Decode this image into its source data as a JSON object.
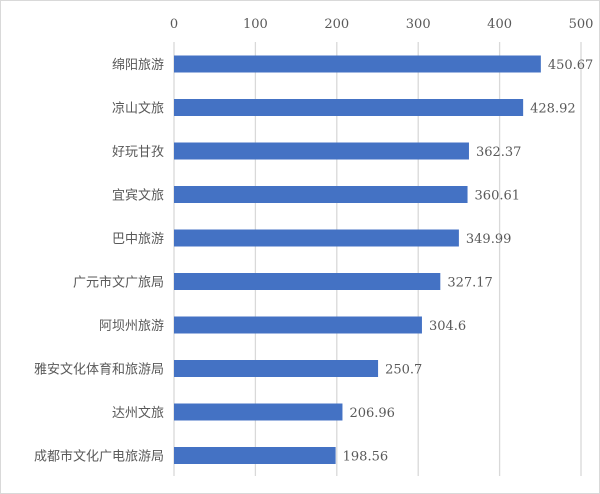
{
  "chart_data": {
    "type": "bar",
    "orientation": "horizontal",
    "title": "",
    "xlabel": "",
    "ylabel": "",
    "xlim": [
      0,
      500
    ],
    "xticks": [
      0,
      100,
      200,
      300,
      400,
      500
    ],
    "tick_labels": [
      "0",
      "100",
      "200",
      "300",
      "400",
      "500"
    ],
    "axis_position": "top",
    "grid": true,
    "categories": [
      "绵阳旅游",
      "凉山文旅",
      "好玩甘孜",
      "宜宾文旅",
      "巴中旅游",
      "广元市文广旅局",
      "阿坝州旅游",
      "雅安文化体育和旅游局",
      "达州文旅",
      "成都市文化广电旅游局"
    ],
    "values": [
      450.67,
      428.92,
      362.37,
      360.61,
      349.99,
      327.17,
      304.6,
      250.7,
      206.96,
      198.56
    ],
    "data_labels": [
      "450.67",
      "428.92",
      "362.37",
      "360.61",
      "349.99",
      "327.17",
      "304.6",
      "250.7",
      "206.96",
      "198.56"
    ],
    "bar_color": "#4472c4",
    "grid_color": "#d9d9d9"
  }
}
